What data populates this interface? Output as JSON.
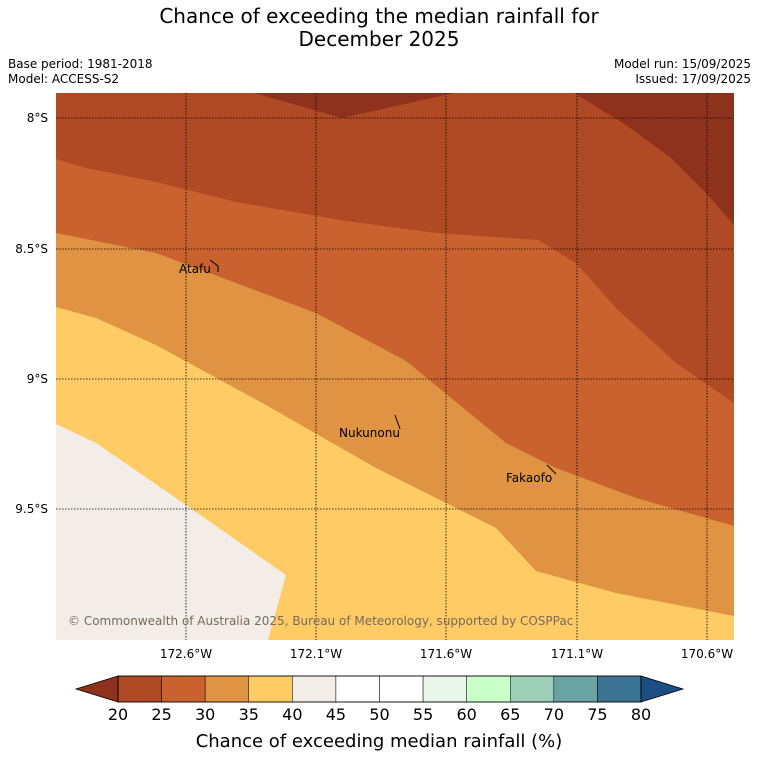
{
  "title_line1": "Chance of exceeding the median rainfall for",
  "title_line2": "December 2025",
  "base_period": "Base period: 1981-2018",
  "model": "Model: ACCESS-S2",
  "model_run": "Model run: 15/09/2025",
  "issued": "Issued: 17/09/2025",
  "lat_labels": [
    "8°S",
    "8.5°S",
    "9°S",
    "9.5°S"
  ],
  "lon_labels": [
    "172.6°W",
    "172.1°W",
    "171.6°W",
    "171.1°W",
    "170.6°W"
  ],
  "places": [
    "Atafu",
    "Nukunonu",
    "Fakaofo"
  ],
  "copyright": "© Commonwealth of Australia 2025, Bureau of Meteorology, supported by COSPPac",
  "colorbar": {
    "ticks": [
      "20",
      "25",
      "30",
      "35",
      "40",
      "45",
      "50",
      "55",
      "60",
      "65",
      "70",
      "75",
      "80"
    ],
    "colors": [
      "#b04a24",
      "#c9622f",
      "#e09343",
      "#fecb65",
      "#f2ede7",
      "#ffffff",
      "#ffffff",
      "#eaf6ea",
      "#c9ffc9",
      "#9ccfb7",
      "#6aa3a4",
      "#3b7393"
    ],
    "under_color": "#8f321d",
    "over_color": "#1a4f84",
    "label": "Chance of exceeding median rainfall (%)"
  }
}
